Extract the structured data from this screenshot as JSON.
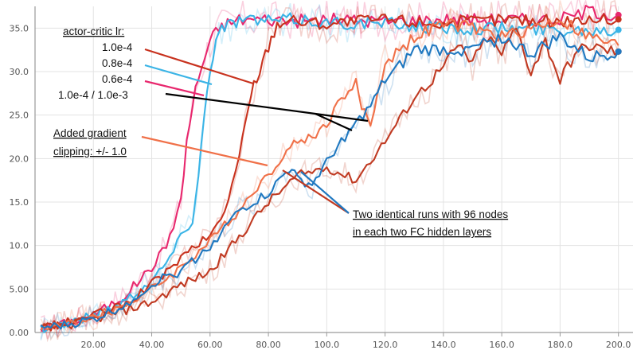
{
  "chart_data": {
    "type": "line",
    "xlim": [
      0,
      205
    ],
    "ylim": [
      0,
      37.5
    ],
    "grid": true,
    "xticks": [
      "20.00",
      "40.00",
      "60.00",
      "80.00",
      "100.0",
      "120.0",
      "140.0",
      "160.0",
      "180.0",
      "200.0"
    ],
    "xtick_values": [
      20,
      40,
      60,
      80,
      100,
      120,
      140,
      160,
      180,
      200
    ],
    "yticks": [
      "0.00",
      "5.00",
      "10.0",
      "15.0",
      "20.0",
      "25.0",
      "30.0",
      "35.0"
    ],
    "ytick_values": [
      0,
      5,
      10,
      15,
      20,
      25,
      30,
      35
    ],
    "annotations": {
      "legend_title": "actor-critic lr:",
      "lr_1": "1.0e-4",
      "lr_2": "0.8e-4",
      "lr_3": "0.6e-4",
      "lr_4": "1.0e-4 / 1.0e-3",
      "clip_line1": "Added gradient",
      "clip_line2": "clipping: +/- 1.0",
      "identical_line1": "Two identical runs with 96 nodes",
      "identical_line2": "in each two FC hidden layers"
    },
    "series": [
      {
        "color": "#e8286e",
        "end_marker": true,
        "x": [
          2,
          10,
          20,
          30,
          40,
          45,
          50,
          52,
          55,
          58,
          60,
          63,
          66,
          70,
          80,
          90,
          100,
          120,
          140,
          160,
          180,
          190,
          200
        ],
        "y": [
          0.5,
          1,
          2,
          4,
          7.5,
          10,
          15,
          22,
          28,
          31.5,
          33.5,
          35,
          35.5,
          36,
          36,
          35.8,
          36,
          35.8,
          36,
          36,
          36,
          37,
          36.5
        ]
      },
      {
        "color": "#3ab4e6",
        "end_marker": true,
        "x": [
          2,
          10,
          20,
          30,
          40,
          45,
          50,
          54,
          56,
          58,
          60,
          62,
          64,
          67,
          70,
          80,
          90,
          100,
          120,
          140,
          160,
          180,
          190,
          200
        ],
        "y": [
          0.5,
          1,
          2,
          3.5,
          6,
          8,
          11,
          13,
          18,
          25,
          30.5,
          33.5,
          35,
          35.5,
          36,
          35.8,
          36,
          35.6,
          35.5,
          35,
          35,
          34.8,
          34.8,
          34.8
        ]
      },
      {
        "color": "#c8321e",
        "end_marker": true,
        "x": [
          2,
          10,
          20,
          30,
          40,
          50,
          55,
          60,
          65,
          70,
          72,
          75,
          78,
          80,
          83,
          86,
          90,
          100,
          120,
          140,
          160,
          180,
          190,
          200
        ],
        "y": [
          0.5,
          1,
          2,
          3,
          5.5,
          8.5,
          10,
          11,
          14,
          20,
          24,
          28.5,
          31,
          33,
          35.5,
          36,
          35.8,
          35.5,
          36,
          35.5,
          36,
          35.8,
          36,
          36
        ]
      },
      {
        "color": "#c03a22",
        "end_marker": true,
        "x": [
          2,
          10,
          20,
          30,
          40,
          50,
          60,
          70,
          80,
          90,
          100,
          110,
          120,
          130,
          140,
          145,
          150,
          155,
          160,
          165,
          170,
          175,
          180,
          185,
          190,
          195,
          200
        ],
        "y": [
          0.5,
          0.8,
          1.5,
          2.5,
          3.5,
          5.5,
          7,
          11,
          15,
          18,
          19,
          17.5,
          22,
          27,
          30.5,
          33,
          31,
          34,
          32,
          35,
          30,
          33.5,
          29,
          32,
          33,
          32.5,
          32.3
        ]
      },
      {
        "color": "#f07048",
        "end_marker": false,
        "x": [
          2,
          10,
          20,
          30,
          40,
          50,
          60,
          70,
          75,
          80,
          85,
          90,
          95,
          100,
          105,
          110,
          112,
          115,
          120,
          130,
          140,
          150,
          160,
          170,
          180,
          190,
          200
        ],
        "y": [
          0.5,
          0.8,
          1.8,
          3,
          5,
          7.5,
          10.5,
          14,
          16.5,
          18,
          20.5,
          22,
          22.5,
          24,
          27,
          28.5,
          26,
          24,
          31,
          34,
          35.5,
          35,
          34,
          35,
          36,
          34,
          33
        ]
      },
      {
        "color": "#1f78c0",
        "end_marker": true,
        "x": [
          2,
          10,
          20,
          30,
          40,
          45,
          50,
          60,
          70,
          75,
          80,
          85,
          88,
          90,
          95,
          100,
          105,
          110,
          115,
          120,
          125,
          130,
          140,
          150,
          160,
          170,
          180,
          190,
          200
        ],
        "y": [
          0.5,
          0.8,
          1.5,
          3,
          5.5,
          6.5,
          7,
          10,
          14,
          15,
          16,
          18,
          19,
          17.5,
          17,
          19.5,
          22,
          24,
          26,
          29,
          30.5,
          32.5,
          32.5,
          32.5,
          34,
          32,
          34,
          31.5,
          32.3
        ]
      }
    ]
  }
}
